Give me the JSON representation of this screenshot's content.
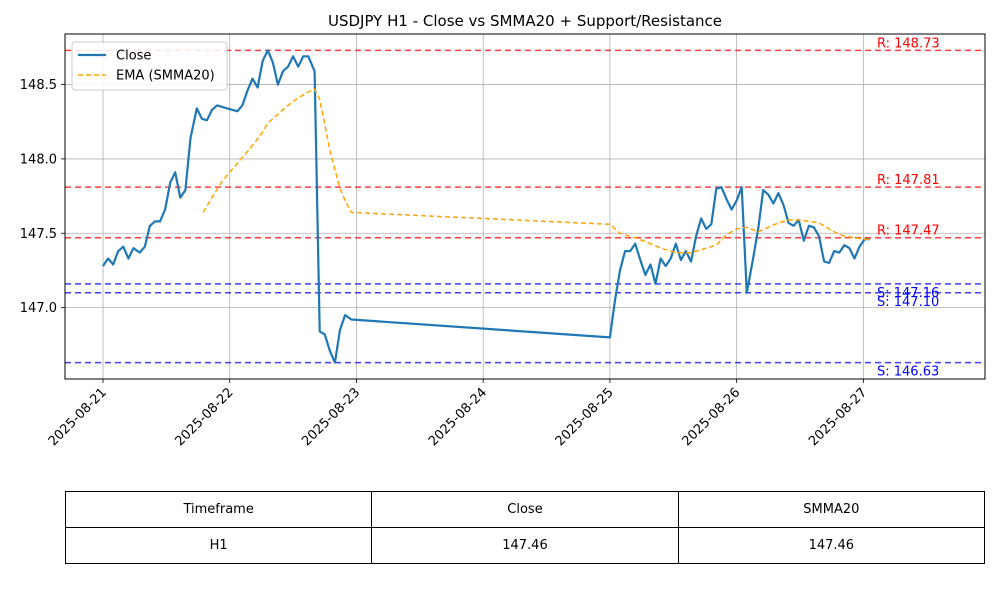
{
  "chart_data": {
    "type": "line",
    "title": "USDJPY H1 - Close vs SMMA20 + Support/Resistance",
    "xlabel": "",
    "ylabel": "",
    "x_ticks": [
      "2025-08-21",
      "2025-08-22",
      "2025-08-23",
      "2025-08-24",
      "2025-08-25",
      "2025-08-26",
      "2025-08-27"
    ],
    "y_ticks": [
      "147.0",
      "147.5",
      "148.0",
      "148.5"
    ],
    "xlim_days": [
      -0.3,
      6.96
    ],
    "ylim": [
      146.52,
      148.84
    ],
    "grid": true,
    "legend_placement": "top-left",
    "series": [
      {
        "name": "Close",
        "color": "#1f77b4",
        "dash": "solid",
        "points": [
          [
            0.0,
            147.28
          ],
          [
            0.04,
            147.33
          ],
          [
            0.08,
            147.29
          ],
          [
            0.12,
            147.38
          ],
          [
            0.16,
            147.41
          ],
          [
            0.2,
            147.33
          ],
          [
            0.24,
            147.4
          ],
          [
            0.29,
            147.37
          ],
          [
            0.33,
            147.41
          ],
          [
            0.37,
            147.55
          ],
          [
            0.41,
            147.58
          ],
          [
            0.45,
            147.58
          ],
          [
            0.49,
            147.66
          ],
          [
            0.53,
            147.84
          ],
          [
            0.57,
            147.91
          ],
          [
            0.61,
            147.74
          ],
          [
            0.65,
            147.79
          ],
          [
            0.69,
            148.14
          ],
          [
            0.74,
            148.34
          ],
          [
            0.78,
            148.27
          ],
          [
            0.82,
            148.26
          ],
          [
            0.86,
            148.33
          ],
          [
            0.9,
            148.36
          ],
          [
            0.94,
            148.35
          ],
          [
            0.98,
            148.34
          ],
          [
            1.02,
            148.33
          ],
          [
            1.06,
            148.32
          ],
          [
            1.1,
            148.36
          ],
          [
            1.14,
            148.46
          ],
          [
            1.18,
            148.54
          ],
          [
            1.22,
            148.48
          ],
          [
            1.26,
            148.66
          ],
          [
            1.3,
            148.73
          ],
          [
            1.34,
            148.65
          ],
          [
            1.38,
            148.5
          ],
          [
            1.42,
            148.59
          ],
          [
            1.46,
            148.62
          ],
          [
            1.5,
            148.69
          ],
          [
            1.54,
            148.62
          ],
          [
            1.58,
            148.69
          ],
          [
            1.62,
            148.69
          ],
          [
            1.67,
            148.59
          ],
          [
            1.71,
            146.84
          ],
          [
            1.75,
            146.82
          ],
          [
            1.79,
            146.71
          ],
          [
            1.83,
            146.63
          ],
          [
            1.87,
            146.85
          ],
          [
            1.91,
            146.95
          ],
          [
            1.96,
            146.92
          ],
          [
            4.0,
            146.8
          ],
          [
            4.04,
            147.05
          ],
          [
            4.08,
            147.25
          ],
          [
            4.12,
            147.38
          ],
          [
            4.16,
            147.38
          ],
          [
            4.2,
            147.43
          ],
          [
            4.24,
            147.32
          ],
          [
            4.28,
            147.22
          ],
          [
            4.32,
            147.29
          ],
          [
            4.36,
            147.16
          ],
          [
            4.4,
            147.33
          ],
          [
            4.44,
            147.28
          ],
          [
            4.48,
            147.33
          ],
          [
            4.52,
            147.43
          ],
          [
            4.56,
            147.32
          ],
          [
            4.6,
            147.38
          ],
          [
            4.64,
            147.31
          ],
          [
            4.68,
            147.48
          ],
          [
            4.72,
            147.6
          ],
          [
            4.76,
            147.53
          ],
          [
            4.8,
            147.56
          ],
          [
            4.84,
            147.8
          ],
          [
            4.88,
            147.81
          ],
          [
            4.92,
            147.73
          ],
          [
            4.96,
            147.66
          ],
          [
            5.0,
            147.72
          ],
          [
            5.04,
            147.81
          ],
          [
            5.08,
            147.1
          ],
          [
            5.13,
            147.33
          ],
          [
            5.17,
            147.53
          ],
          [
            5.21,
            147.79
          ],
          [
            5.25,
            147.76
          ],
          [
            5.29,
            147.7
          ],
          [
            5.33,
            147.77
          ],
          [
            5.37,
            147.69
          ],
          [
            5.41,
            147.57
          ],
          [
            5.45,
            147.55
          ],
          [
            5.49,
            147.59
          ],
          [
            5.53,
            147.45
          ],
          [
            5.57,
            147.55
          ],
          [
            5.61,
            147.54
          ],
          [
            5.65,
            147.48
          ],
          [
            5.69,
            147.31
          ],
          [
            5.73,
            147.3
          ],
          [
            5.77,
            147.38
          ],
          [
            5.81,
            147.37
          ],
          [
            5.85,
            147.42
          ],
          [
            5.89,
            147.4
          ],
          [
            5.93,
            147.33
          ],
          [
            5.97,
            147.41
          ],
          [
            6.01,
            147.46
          ],
          [
            6.05,
            147.46
          ]
        ]
      },
      {
        "name": "EMA (SMMA20)",
        "color": "#ffa500",
        "dash": "dashed",
        "points": [
          [
            0.79,
            147.64
          ],
          [
            0.86,
            147.74
          ],
          [
            0.94,
            147.85
          ],
          [
            1.02,
            147.93
          ],
          [
            1.1,
            148.01
          ],
          [
            1.18,
            148.09
          ],
          [
            1.26,
            148.18
          ],
          [
            1.3,
            148.24
          ],
          [
            1.38,
            148.3
          ],
          [
            1.46,
            148.36
          ],
          [
            1.54,
            148.41
          ],
          [
            1.62,
            148.45
          ],
          [
            1.67,
            148.47
          ],
          [
            1.71,
            148.4
          ],
          [
            1.75,
            148.23
          ],
          [
            1.79,
            148.06
          ],
          [
            1.83,
            147.93
          ],
          [
            1.87,
            147.8
          ],
          [
            1.91,
            147.72
          ],
          [
            1.96,
            147.64
          ],
          [
            4.0,
            147.56
          ],
          [
            4.08,
            147.5
          ],
          [
            4.2,
            147.47
          ],
          [
            4.32,
            147.43
          ],
          [
            4.4,
            147.4
          ],
          [
            4.52,
            147.37
          ],
          [
            4.64,
            147.37
          ],
          [
            4.72,
            147.39
          ],
          [
            4.84,
            147.42
          ],
          [
            4.92,
            147.49
          ],
          [
            5.0,
            147.53
          ],
          [
            5.08,
            147.54
          ],
          [
            5.17,
            147.51
          ],
          [
            5.25,
            147.54
          ],
          [
            5.33,
            147.57
          ],
          [
            5.41,
            147.59
          ],
          [
            5.49,
            147.59
          ],
          [
            5.57,
            147.58
          ],
          [
            5.65,
            147.57
          ],
          [
            5.77,
            147.51
          ],
          [
            5.85,
            147.48
          ],
          [
            5.93,
            147.47
          ],
          [
            6.01,
            147.46
          ],
          [
            6.05,
            147.46
          ]
        ]
      }
    ],
    "levels": [
      {
        "kind": "resistance",
        "value": 148.73,
        "label": "R: 148.73",
        "color": "#ff0000"
      },
      {
        "kind": "resistance",
        "value": 147.81,
        "label": "R: 147.81",
        "color": "#ff0000"
      },
      {
        "kind": "resistance",
        "value": 147.47,
        "label": "R: 147.47",
        "color": "#ff0000"
      },
      {
        "kind": "support",
        "value": 147.16,
        "label": "S: 147.16",
        "color": "#0000ff"
      },
      {
        "kind": "support",
        "value": 147.1,
        "label": "S: 147.10",
        "color": "#0000ff"
      },
      {
        "kind": "support",
        "value": 146.63,
        "label": "S: 146.63",
        "color": "#0000ff"
      }
    ]
  },
  "table": {
    "headers": [
      "Timeframe",
      "Close",
      "SMMA20"
    ],
    "rows": [
      [
        "H1",
        "147.46",
        "147.46"
      ]
    ]
  }
}
